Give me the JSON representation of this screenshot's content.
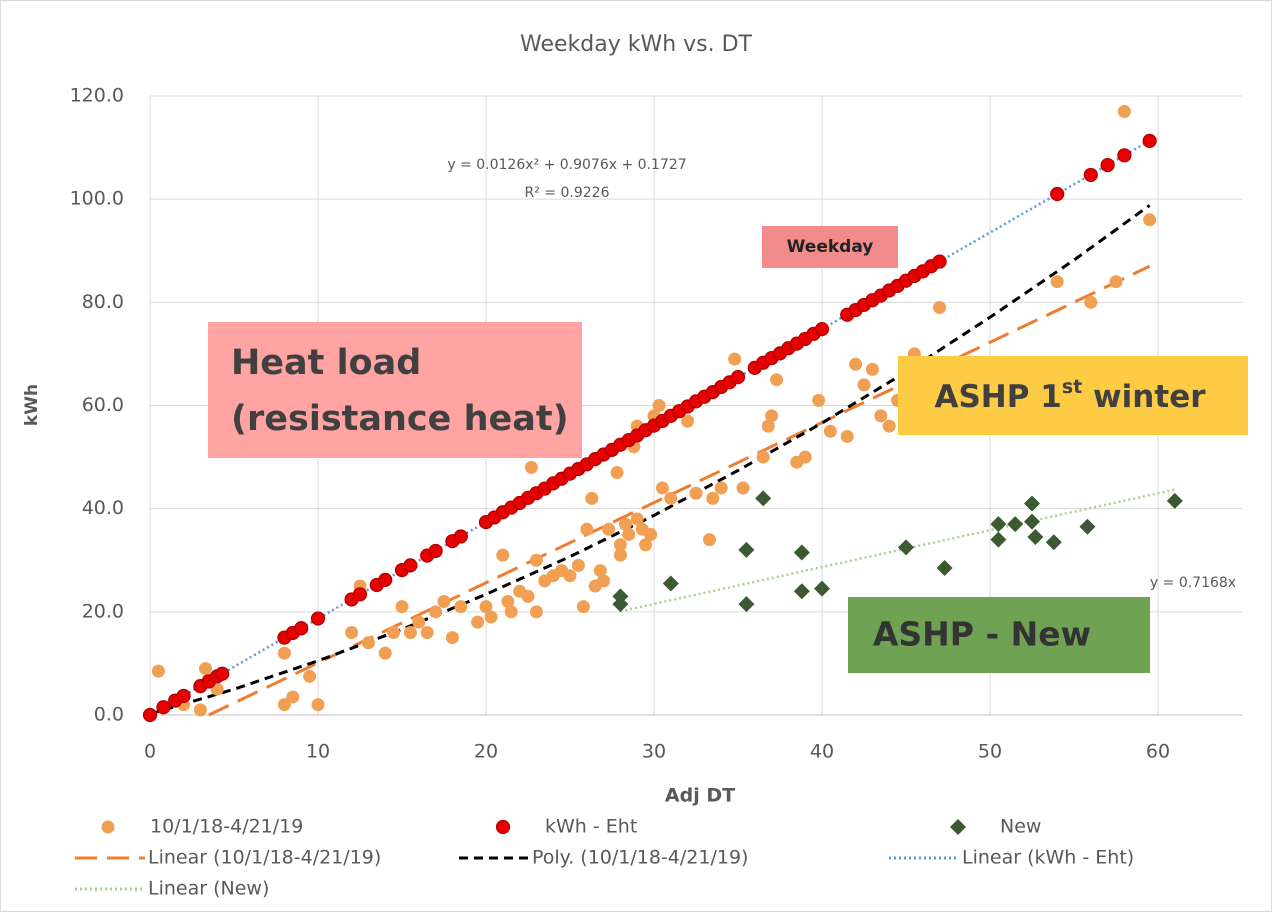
{
  "chart_data": {
    "type": "scatter",
    "title": "Weekday kWh vs. DT",
    "x_label": "Adj DT",
    "y_label": "kWh",
    "xlim": [
      0,
      65
    ],
    "ylim": [
      0,
      120
    ],
    "xticks": [
      0,
      10,
      20,
      30,
      40,
      50,
      60
    ],
    "yticks": [
      {
        "value": 0,
        "label": "0.0"
      },
      {
        "value": 20,
        "label": "20.0"
      },
      {
        "value": 40,
        "label": "40.0"
      },
      {
        "value": 60,
        "label": "60.0"
      },
      {
        "value": 80,
        "label": "80.0"
      },
      {
        "value": 100,
        "label": "100.0"
      },
      {
        "value": 120,
        "label": "120.0"
      }
    ],
    "grid": true,
    "legend": "bottom",
    "series": [
      {
        "name": "10/1/18-4/21/19",
        "kind": "scatter",
        "marker": "circle",
        "color": "#f19f52",
        "x": [
          0.5,
          2,
          3,
          3.3,
          3.5,
          4,
          8,
          8,
          8.5,
          9,
          9.5,
          10,
          12,
          12.5,
          13,
          14,
          14.5,
          15,
          15.5,
          16,
          16.5,
          17,
          17.5,
          18,
          18.5,
          19.5,
          20,
          20.3,
          21,
          21.3,
          21.5,
          22,
          22.5,
          22.7,
          23,
          23,
          23.5,
          24,
          24.5,
          25,
          25.5,
          25.8,
          26,
          26.3,
          26.5,
          26.8,
          27,
          27.3,
          27.8,
          28,
          28,
          28.3,
          28.5,
          28.8,
          29,
          29,
          29.3,
          29.5,
          29.8,
          30,
          30.3,
          30.5,
          31,
          31.5,
          32,
          32.5,
          33.3,
          33.5,
          34,
          34.8,
          35.3,
          36.5,
          36.8,
          37,
          37.3,
          38.5,
          39,
          39.8,
          40.5,
          41.5,
          42,
          42.5,
          43,
          43.5,
          44,
          44.5,
          45,
          45.5,
          46,
          47,
          54,
          56,
          57.5,
          58,
          59.5
        ],
        "values": [
          8.5,
          2,
          1,
          9,
          7,
          5,
          2,
          12,
          3.5,
          17,
          7.5,
          2,
          16,
          25,
          14,
          12,
          16,
          21,
          16,
          18,
          16,
          20,
          22,
          15,
          21,
          18,
          21,
          19,
          31,
          22,
          20,
          24,
          23,
          48,
          20,
          30,
          26,
          27,
          28,
          27,
          29,
          21,
          36,
          42,
          25,
          28,
          26,
          36,
          47,
          33,
          31,
          37,
          35,
          52,
          56,
          38,
          36,
          33,
          35,
          58,
          60,
          44,
          42,
          59,
          57,
          43,
          34,
          42,
          44,
          69,
          44,
          50,
          56,
          58,
          65,
          49,
          50,
          61,
          55,
          54,
          68,
          64,
          67,
          58,
          56,
          61,
          60,
          70,
          65,
          79,
          84,
          80,
          84,
          117,
          96
        ]
      },
      {
        "name": "kWh - Eht",
        "kind": "scatter",
        "marker": "circle",
        "color": "#e60000",
        "x": [
          0,
          0.8,
          1.5,
          2,
          3,
          3.5,
          4,
          4.3,
          8,
          8.5,
          9,
          10,
          12,
          12.5,
          13.5,
          14,
          15,
          15.5,
          16.5,
          17,
          18,
          18.5,
          20,
          20.5,
          21,
          21.5,
          22,
          22.5,
          23,
          23.5,
          24,
          24.5,
          25,
          25.5,
          26,
          26.5,
          27,
          27.5,
          28,
          28.5,
          29,
          29.5,
          30,
          30.5,
          31,
          31.5,
          32,
          32.5,
          33,
          33.5,
          34,
          34.5,
          35,
          36,
          36.5,
          37,
          37.5,
          38,
          38.5,
          39,
          39.5,
          40,
          41.5,
          42,
          42.5,
          43,
          43.5,
          44,
          44.5,
          45,
          45.5,
          46,
          46.5,
          47,
          54,
          56,
          57,
          58,
          59.5
        ],
        "values": [
          0,
          1.5,
          2.8,
          3.7,
          5.6,
          6.5,
          7.5,
          8,
          15,
          15.9,
          16.8,
          18.7,
          22.4,
          23.4,
          25.2,
          26.2,
          28.1,
          29,
          30.9,
          31.8,
          33.7,
          34.6,
          37.4,
          38.3,
          39.3,
          40.2,
          41.1,
          42.1,
          43,
          43.9,
          44.9,
          45.8,
          46.8,
          47.7,
          48.6,
          49.6,
          50.5,
          51.4,
          52.4,
          53.3,
          54.2,
          55.2,
          56.1,
          57,
          58,
          58.9,
          59.8,
          60.8,
          61.7,
          62.6,
          63.6,
          64.5,
          65.5,
          67.3,
          68.3,
          69.2,
          70.1,
          71.1,
          72,
          72.9,
          73.9,
          74.8,
          77.6,
          78.5,
          79.5,
          80.4,
          81.3,
          82.3,
          83.2,
          84.2,
          85.1,
          86,
          87,
          87.9,
          101,
          104.7,
          106.6,
          108.5,
          111.3
        ]
      },
      {
        "name": "New",
        "kind": "scatter",
        "marker": "diamond",
        "color": "#3b5a32",
        "x": [
          28,
          28,
          31,
          35.5,
          35.5,
          36.5,
          38.8,
          38.8,
          40,
          45,
          47.3,
          50.5,
          50.5,
          51.5,
          52.5,
          52.5,
          52.7,
          53.8,
          55.8,
          61
        ],
        "values": [
          21.5,
          23,
          25.5,
          32,
          21.5,
          42,
          31.5,
          24,
          24.5,
          32.5,
          28.5,
          37,
          34,
          37,
          41,
          37.5,
          34.5,
          33.5,
          36.5,
          41.5
        ]
      },
      {
        "name": "Linear (10/1/18-4/21/19)",
        "kind": "line",
        "dash": "long",
        "color": "#ed7d31",
        "x": [
          3.5,
          59.5
        ],
        "values": [
          0,
          87
        ]
      },
      {
        "name": "Poly. (10/1/18-4/21/19)",
        "kind": "line",
        "dash": "dash",
        "color": "#000000",
        "x": [
          0,
          5,
          10,
          15,
          20,
          25,
          30,
          35,
          40,
          45,
          50,
          55,
          59.5
        ],
        "values": [
          0.2,
          5.0,
          10.5,
          16.6,
          23.4,
          30.7,
          38.7,
          47.4,
          56.6,
          66.5,
          77.1,
          88.2,
          98.8
        ]
      },
      {
        "name": "Linear (kWh - Eht)",
        "kind": "line",
        "dash": "dot",
        "color": "#5b9bd5",
        "x": [
          0,
          59.5
        ],
        "values": [
          0,
          111.3
        ]
      },
      {
        "name": "Linear (New)",
        "kind": "line",
        "dash": "dot",
        "color": "#a9d18e",
        "x": [
          28,
          61
        ],
        "values": [
          20.1,
          43.7
        ]
      }
    ],
    "annotations": {
      "poly_equation": "y = 0.0126x² + 0.9076x + 0.1727",
      "poly_r2": "R² = 0.9226",
      "new_equation": "y = 0.7168x",
      "weekday": "Weekday",
      "heat_load": [
        "Heat load",
        "(resistance heat)"
      ],
      "ashp_first": [
        "ASHP 1",
        "st",
        " winter"
      ],
      "ashp_new": "ASHP - New"
    }
  }
}
